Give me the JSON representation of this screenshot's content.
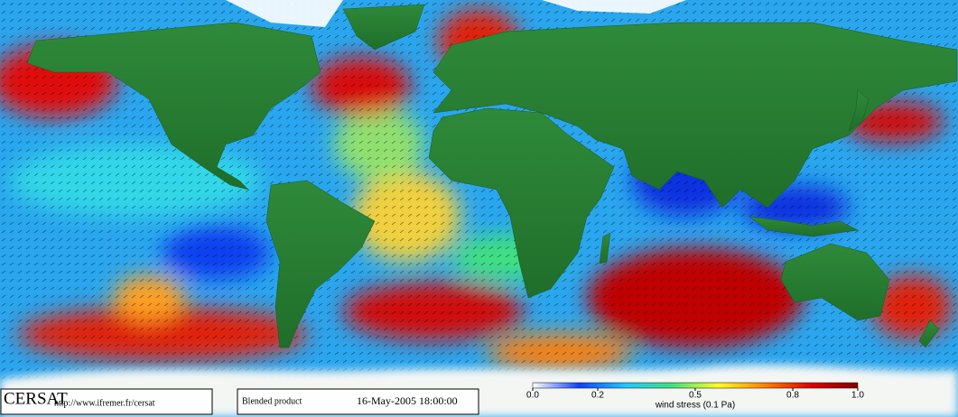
{
  "footer": {
    "logo": "CERSAT",
    "url": "http://www.ifremer.fr/cersat",
    "product": "Blended product",
    "date": "16-May-2005 18:00:00"
  },
  "colorbar": {
    "label": "wind stress (0.1 Pa)",
    "range": [
      0,
      1
    ],
    "ticks": [
      {
        "value": 0,
        "label": "0.0"
      },
      0.2,
      0.5,
      0.8,
      {
        "value": 1,
        "label": "1.0"
      }
    ],
    "colors": [
      "#ffffff",
      "#1040ff",
      "#20c8ff",
      "#40e080",
      "#ffff20",
      "#ff8000",
      "#e00000",
      "#800000"
    ]
  }
}
